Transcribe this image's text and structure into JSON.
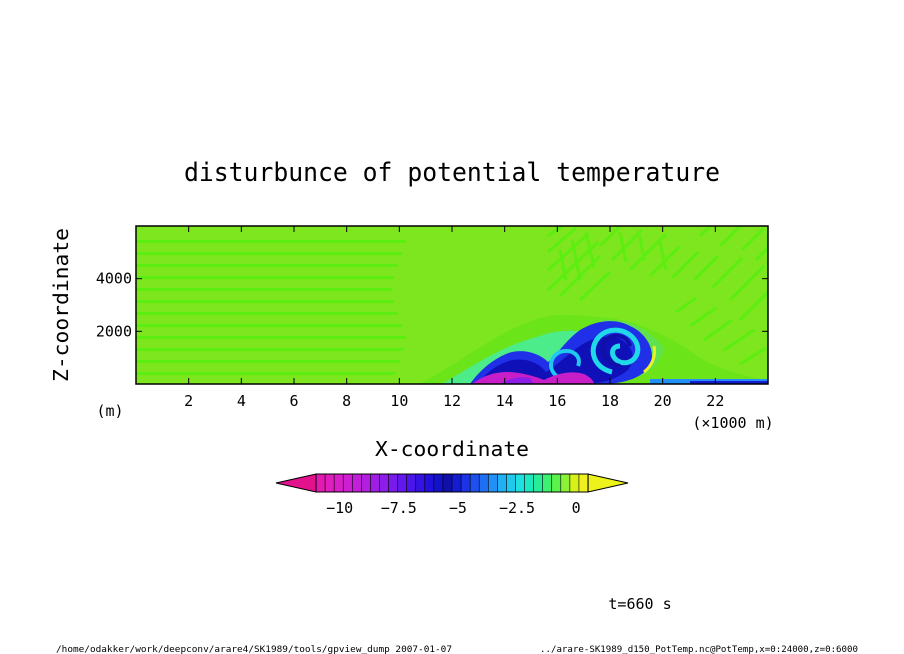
{
  "chart_data": {
    "type": "heatmap",
    "title": "disturbunce of potential temperature",
    "xlabel": "X-coordinate",
    "ylabel": "Z-coordinate",
    "x_unit": "(×1000 m)",
    "y_unit": "(m)",
    "xlim": [
      0,
      24
    ],
    "ylim": [
      0,
      6000
    ],
    "x_ticks": [
      2,
      4,
      6,
      8,
      10,
      12,
      14,
      16,
      18,
      20,
      22
    ],
    "y_ticks": [
      2000,
      4000
    ],
    "colorbar": {
      "min": -11,
      "max": 0.5,
      "step": 0.5,
      "tick_values": [
        -10,
        -7.5,
        -5,
        -2.5,
        0
      ],
      "tick_labels": [
        "−10",
        "−7.5",
        "−5",
        "−2.5",
        "0"
      ],
      "extend": "both",
      "colors": [
        "#e21bb0",
        "#e01ebd",
        "#d81ec8",
        "#cf1fd2",
        "#c21fd9",
        "#b21fdf",
        "#a01ee4",
        "#8d1de8",
        "#781beb",
        "#6218ec",
        "#4a15ea",
        "#3512e4",
        "#2010dc",
        "#1212c8",
        "#1010a8",
        "#141cd0",
        "#1a34e6",
        "#1e50ee",
        "#2070f4",
        "#2290f6",
        "#22b0f4",
        "#20c8ee",
        "#1ee0e0",
        "#1ee8c0",
        "#28ec98",
        "#3cf070",
        "#5cf24c",
        "#8cf238",
        "#d6f21a",
        "#f0f020"
      ],
      "under_color": "#e2118c",
      "over_color": "#ecf21a"
    },
    "field_description_values": {
      "background": 0,
      "cold_pool_min": -11
    }
  },
  "annotations": {
    "time_label": "t=660 s",
    "footer_left": "/home/odakker/work/deepconv/arare4/SK1989/tools/gpview_dump  2007-01-07",
    "footer_right": "../arare-SK1989_d150_PotTemp.nc@PotTemp,x=0:24000,z=0:6000"
  }
}
